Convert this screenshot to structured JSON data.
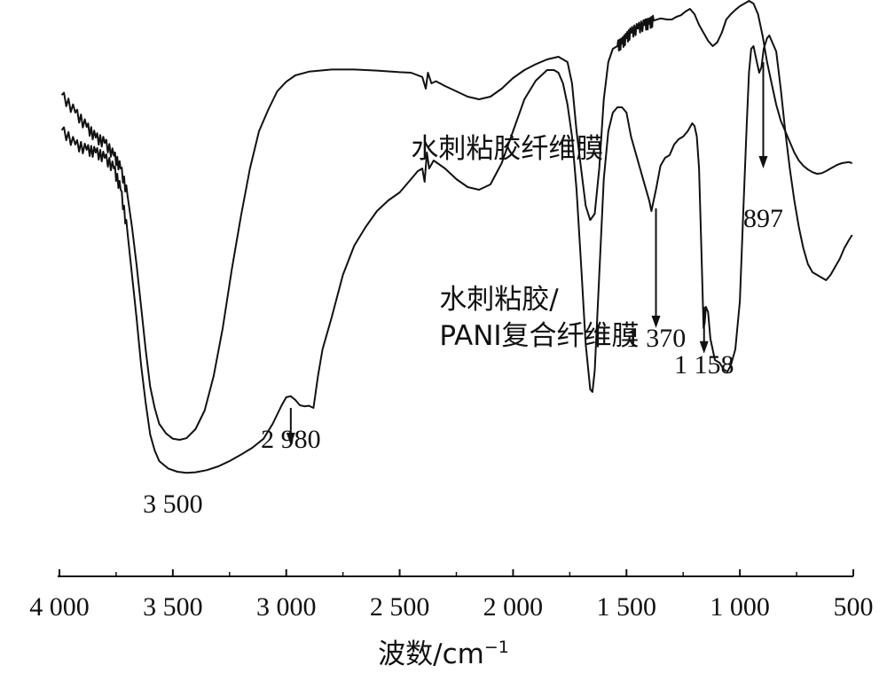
{
  "chart_data": {
    "type": "line",
    "title": "",
    "xlabel": "波数/cm",
    "xlabel_superscript": "−1",
    "ylabel": "",
    "xlim": [
      4000,
      500
    ],
    "x_reversed": true,
    "x_ticks": [
      4000,
      3500,
      3000,
      2500,
      2000,
      1500,
      1000,
      500
    ],
    "x_tick_labels": [
      "4 000",
      "3 500",
      "3 000",
      "2 500",
      "2 000",
      "1 500",
      "1 000",
      "500"
    ],
    "ylim": [
      0,
      100
    ],
    "grid": false,
    "series": [
      {
        "name": "水刺粘胶纤维膜",
        "color": "#111111",
        "points": [
          [
            3990,
            83.8
          ],
          [
            3930,
            80.5
          ],
          [
            3880,
            77.8
          ],
          [
            3840,
            75.8
          ],
          [
            3800,
            74.8
          ],
          [
            3760,
            72.4
          ],
          [
            3730,
            70.0
          ],
          [
            3700,
            65.0
          ],
          [
            3680,
            59.0
          ],
          [
            3660,
            52.0
          ],
          [
            3640,
            44.0
          ],
          [
            3620,
            36.0
          ],
          [
            3600,
            29.0
          ],
          [
            3580,
            25.0
          ],
          [
            3560,
            22.0
          ],
          [
            3530,
            20.2
          ],
          [
            3500,
            19.2
          ],
          [
            3470,
            19.0
          ],
          [
            3440,
            19.3
          ],
          [
            3400,
            21.0
          ],
          [
            3360,
            24.5
          ],
          [
            3320,
            31.0
          ],
          [
            3280,
            40.0
          ],
          [
            3240,
            51.0
          ],
          [
            3200,
            61.0
          ],
          [
            3160,
            70.0
          ],
          [
            3120,
            77.0
          ],
          [
            3080,
            81.0
          ],
          [
            3040,
            84.5
          ],
          [
            3000,
            86.3
          ],
          [
            2960,
            87.5
          ],
          [
            2900,
            88.2
          ],
          [
            2800,
            88.6
          ],
          [
            2700,
            88.6
          ],
          [
            2600,
            88.4
          ],
          [
            2500,
            88.1
          ],
          [
            2450,
            88.0
          ],
          [
            2400,
            87.2
          ],
          [
            2385,
            85.0
          ],
          [
            2375,
            88.0
          ],
          [
            2360,
            86.0
          ],
          [
            2340,
            86.4
          ],
          [
            2300,
            85.5
          ],
          [
            2250,
            84.5
          ],
          [
            2200,
            83.5
          ],
          [
            2150,
            83.0
          ],
          [
            2100,
            83.5
          ],
          [
            2050,
            85.0
          ],
          [
            2000,
            87.0
          ],
          [
            1950,
            88.5
          ],
          [
            1900,
            89.6
          ],
          [
            1850,
            90.5
          ],
          [
            1800,
            91.0
          ],
          [
            1760,
            90.0
          ],
          [
            1740,
            86.0
          ],
          [
            1720,
            77.0
          ],
          [
            1700,
            70.0
          ],
          [
            1680,
            63.0
          ],
          [
            1660,
            60.3
          ],
          [
            1640,
            61.5
          ],
          [
            1620,
            70.0
          ],
          [
            1600,
            83.0
          ],
          [
            1580,
            90.0
          ],
          [
            1560,
            92.5
          ],
          [
            1540,
            93.0
          ],
          [
            1520,
            93.5
          ],
          [
            1500,
            94.5
          ],
          [
            1480,
            95.5
          ],
          [
            1450,
            96.3
          ],
          [
            1420,
            97.0
          ],
          [
            1400,
            97.2
          ],
          [
            1380,
            97.8
          ],
          [
            1350,
            98.2
          ],
          [
            1320,
            98.0
          ],
          [
            1300,
            98.0
          ],
          [
            1280,
            98.5
          ],
          [
            1260,
            98.8
          ],
          [
            1240,
            99.5
          ],
          [
            1220,
            100.0
          ],
          [
            1200,
            99.0
          ],
          [
            1180,
            97.0
          ],
          [
            1160,
            95.5
          ],
          [
            1140,
            94.0
          ],
          [
            1120,
            93.0
          ],
          [
            1100,
            93.7
          ],
          [
            1080,
            95.5
          ],
          [
            1060,
            98.0
          ],
          [
            1040,
            99.0
          ],
          [
            1020,
            99.8
          ],
          [
            1000,
            100.5
          ],
          [
            980,
            101.0
          ],
          [
            960,
            101.5
          ],
          [
            940,
            101.0
          ],
          [
            920,
            99.0
          ],
          [
            900,
            95.0
          ],
          [
            880,
            90.0
          ],
          [
            860,
            86.0
          ],
          [
            840,
            82.0
          ],
          [
            820,
            79.0
          ],
          [
            800,
            77.0
          ],
          [
            780,
            75.0
          ],
          [
            760,
            73.0
          ],
          [
            740,
            71.5
          ],
          [
            720,
            70.5
          ],
          [
            700,
            69.8
          ],
          [
            680,
            69.3
          ],
          [
            660,
            69.0
          ],
          [
            640,
            69.1
          ],
          [
            620,
            69.5
          ],
          [
            600,
            70.0
          ],
          [
            570,
            70.7
          ],
          [
            550,
            71.0
          ],
          [
            520,
            71.2
          ],
          [
            505,
            71.0
          ]
        ]
      },
      {
        "name": "水刺粘胶/PANI复合纤维膜",
        "color": "#111111",
        "points": [
          [
            3990,
            77.2
          ],
          [
            3930,
            74.5
          ],
          [
            3880,
            73.5
          ],
          [
            3840,
            73.0
          ],
          [
            3800,
            72.0
          ],
          [
            3760,
            70.0
          ],
          [
            3730,
            66.0
          ],
          [
            3700,
            58.0
          ],
          [
            3680,
            50.0
          ],
          [
            3660,
            42.0
          ],
          [
            3640,
            33.0
          ],
          [
            3620,
            26.0
          ],
          [
            3600,
            20.0
          ],
          [
            3580,
            17.0
          ],
          [
            3560,
            15.0
          ],
          [
            3520,
            13.6
          ],
          [
            3480,
            13.0
          ],
          [
            3440,
            12.8
          ],
          [
            3400,
            12.9
          ],
          [
            3350,
            13.3
          ],
          [
            3300,
            14.0
          ],
          [
            3250,
            15.0
          ],
          [
            3200,
            16.2
          ],
          [
            3150,
            17.5
          ],
          [
            3100,
            19.2
          ],
          [
            3060,
            22.0
          ],
          [
            3020,
            25.5
          ],
          [
            3000,
            27.0
          ],
          [
            2980,
            27.2
          ],
          [
            2960,
            26.5
          ],
          [
            2940,
            25.5
          ],
          [
            2920,
            25.3
          ],
          [
            2900,
            25.4
          ],
          [
            2880,
            25.0
          ],
          [
            2860,
            31.0
          ],
          [
            2840,
            36.0
          ],
          [
            2800,
            42.0
          ],
          [
            2750,
            50.0
          ],
          [
            2700,
            55.5
          ],
          [
            2650,
            59.0
          ],
          [
            2600,
            62.0
          ],
          [
            2550,
            64.0
          ],
          [
            2500,
            65.5
          ],
          [
            2450,
            68.0
          ],
          [
            2420,
            69.5
          ],
          [
            2400,
            70.0
          ],
          [
            2390,
            67.5
          ],
          [
            2380,
            73.0
          ],
          [
            2370,
            70.0
          ],
          [
            2350,
            71.5
          ],
          [
            2300,
            70.0
          ],
          [
            2250,
            68.0
          ],
          [
            2200,
            66.5
          ],
          [
            2150,
            66.0
          ],
          [
            2100,
            67.0
          ],
          [
            2050,
            71.0
          ],
          [
            2000,
            77.0
          ],
          [
            1950,
            83.0
          ],
          [
            1900,
            86.5
          ],
          [
            1850,
            88.5
          ],
          [
            1820,
            88.5
          ],
          [
            1800,
            88.0
          ],
          [
            1780,
            86.0
          ],
          [
            1760,
            82.0
          ],
          [
            1740,
            76.0
          ],
          [
            1720,
            66.0
          ],
          [
            1700,
            52.0
          ],
          [
            1680,
            37.0
          ],
          [
            1660,
            28.5
          ],
          [
            1650,
            28.0
          ],
          [
            1640,
            32.0
          ],
          [
            1620,
            50.0
          ],
          [
            1600,
            68.0
          ],
          [
            1580,
            77.0
          ],
          [
            1560,
            80.5
          ],
          [
            1540,
            81.5
          ],
          [
            1520,
            81.5
          ],
          [
            1500,
            80.5
          ],
          [
            1480,
            76.0
          ],
          [
            1460,
            73.0
          ],
          [
            1440,
            70.0
          ],
          [
            1420,
            67.0
          ],
          [
            1400,
            64.0
          ],
          [
            1390,
            62.0
          ],
          [
            1370,
            66.0
          ],
          [
            1350,
            70.5
          ],
          [
            1330,
            72.0
          ],
          [
            1310,
            72.5
          ],
          [
            1290,
            74.5
          ],
          [
            1270,
            75.5
          ],
          [
            1250,
            76.0
          ],
          [
            1230,
            77.0
          ],
          [
            1210,
            78.5
          ],
          [
            1200,
            78.0
          ],
          [
            1190,
            76.0
          ],
          [
            1180,
            70.0
          ],
          [
            1170,
            55.0
          ],
          [
            1160,
            40.0
          ],
          [
            1155,
            41.0
          ],
          [
            1150,
            44.0
          ],
          [
            1140,
            43.0
          ],
          [
            1130,
            38.0
          ],
          [
            1110,
            34.0
          ],
          [
            1090,
            33.5
          ],
          [
            1070,
            32.2
          ],
          [
            1055,
            31.8
          ],
          [
            1040,
            33.0
          ],
          [
            1020,
            36.0
          ],
          [
            1000,
            45.0
          ],
          [
            985,
            62.0
          ],
          [
            970,
            78.0
          ],
          [
            960,
            88.0
          ],
          [
            950,
            92.5
          ],
          [
            940,
            93.0
          ],
          [
            930,
            91.0
          ],
          [
            915,
            88.0
          ],
          [
            905,
            89.0
          ],
          [
            895,
            92.5
          ],
          [
            880,
            94.5
          ],
          [
            870,
            95.0
          ],
          [
            860,
            94.0
          ],
          [
            840,
            92.0
          ],
          [
            820,
            85.0
          ],
          [
            800,
            77.0
          ],
          [
            780,
            70.0
          ],
          [
            760,
            64.0
          ],
          [
            740,
            59.0
          ],
          [
            720,
            55.0
          ],
          [
            700,
            52.0
          ],
          [
            680,
            50.5
          ],
          [
            660,
            50.0
          ],
          [
            640,
            49.5
          ],
          [
            620,
            49.0
          ],
          [
            600,
            50.0
          ],
          [
            580,
            51.5
          ],
          [
            560,
            53.0
          ],
          [
            540,
            55.0
          ],
          [
            520,
            56.5
          ],
          [
            505,
            57.5
          ]
        ]
      }
    ],
    "labels": [
      {
        "text": "水刺粘胶纤维膜",
        "x": 2450,
        "y": 72.0
      },
      {
        "text": "水刺粘胶/",
        "x": 2325,
        "y": 43.7
      },
      {
        "text": "PANI复合纤维膜",
        "x": 2325,
        "y": 36.8
      }
    ],
    "annotations": [
      {
        "label": "3 500",
        "x": 3500,
        "y": 5.3
      },
      {
        "label": "2 980",
        "x": 2980,
        "y": 17.5,
        "arrow_from": 25.0,
        "arrow_to": 18.0
      },
      {
        "label": "1 370",
        "x": 1370,
        "y": 36.5,
        "arrow_from": 62.5,
        "arrow_to": 40.0
      },
      {
        "label": "1 158",
        "x": 1158,
        "y": 31.5,
        "arrow_from": 44.0,
        "arrow_to": 35.2
      },
      {
        "label": "897",
        "x": 897,
        "y": 59.0,
        "arrow_from": 90.0,
        "arrow_to": 70.0
      }
    ]
  }
}
